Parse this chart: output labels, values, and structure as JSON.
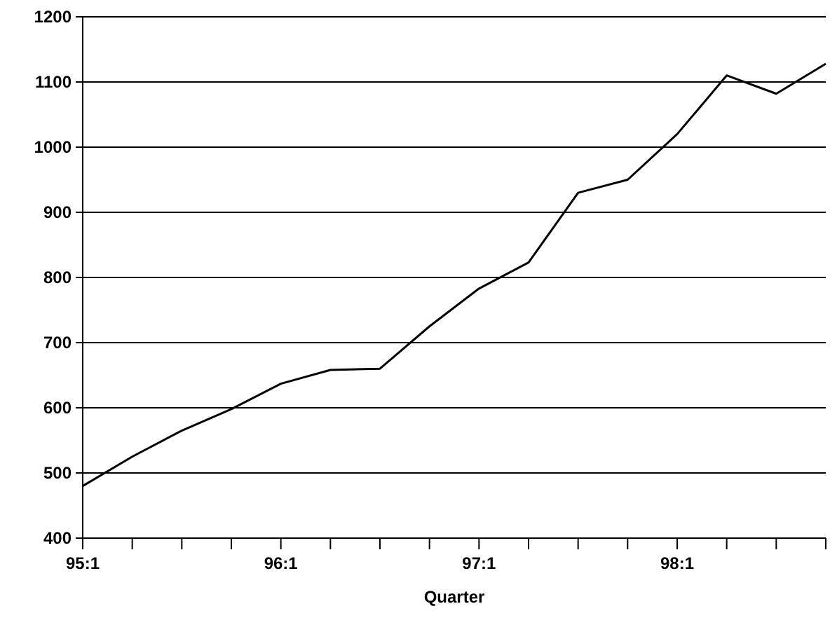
{
  "chart_data": {
    "type": "line",
    "xlabel": "Quarter",
    "categories": [
      "95:1",
      null,
      null,
      null,
      "96:1",
      null,
      null,
      null,
      "97:1",
      null,
      null,
      null,
      "98:1",
      null,
      null,
      null
    ],
    "series": [
      {
        "color": "#000000",
        "values": [
          480,
          525,
          565,
          598,
          637,
          658,
          660,
          725,
          783,
          823,
          930,
          950,
          1020,
          1110,
          1082,
          1128
        ]
      }
    ],
    "ylim": [
      400,
      1200
    ],
    "yticks": [
      400,
      500,
      600,
      700,
      800,
      900,
      1000,
      1100,
      1200
    ],
    "grid": "y",
    "marker": "none",
    "line_style": "solid"
  }
}
